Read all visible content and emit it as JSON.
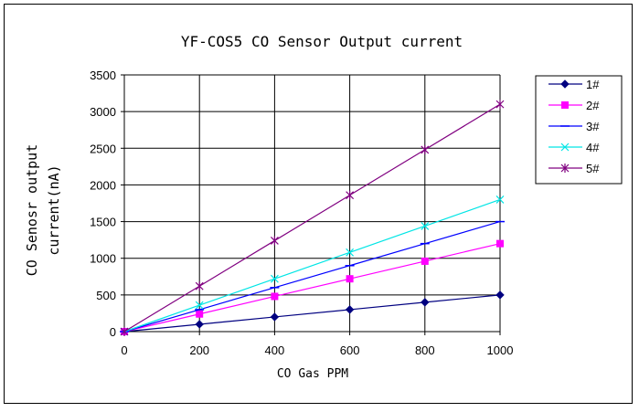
{
  "chart_data": {
    "type": "line",
    "title": "YF-COS5 CO Sensor Output current",
    "xlabel": "CO Gas PPM",
    "ylabel_lines": [
      "CO Senosr output",
      "current(nA)"
    ],
    "x": [
      0,
      200,
      400,
      600,
      800,
      1000
    ],
    "xlim": [
      0,
      1000
    ],
    "ylim": [
      0,
      3500
    ],
    "xticks": [
      "0",
      "200",
      "400",
      "600",
      "800",
      "1000"
    ],
    "yticks": [
      "0",
      "500",
      "1000",
      "1500",
      "2000",
      "2500",
      "3000",
      "3500"
    ],
    "grid": true,
    "legend_position": "right",
    "series": [
      {
        "name": "1#",
        "color": "#000080",
        "marker": "diamond",
        "values": [
          0,
          100,
          200,
          300,
          400,
          500
        ]
      },
      {
        "name": "2#",
        "color": "#ff00ff",
        "marker": "square",
        "values": [
          0,
          240,
          480,
          720,
          960,
          1200
        ]
      },
      {
        "name": "3#",
        "color": "#0000ff",
        "marker": "dash",
        "values": [
          0,
          300,
          600,
          900,
          1200,
          1500
        ]
      },
      {
        "name": "4#",
        "color": "#00e5e5",
        "marker": "x",
        "values": [
          0,
          360,
          720,
          1080,
          1440,
          1800
        ]
      },
      {
        "name": "5#",
        "color": "#800080",
        "marker": "star",
        "values": [
          0,
          620,
          1240,
          1860,
          2480,
          3100
        ]
      }
    ]
  }
}
